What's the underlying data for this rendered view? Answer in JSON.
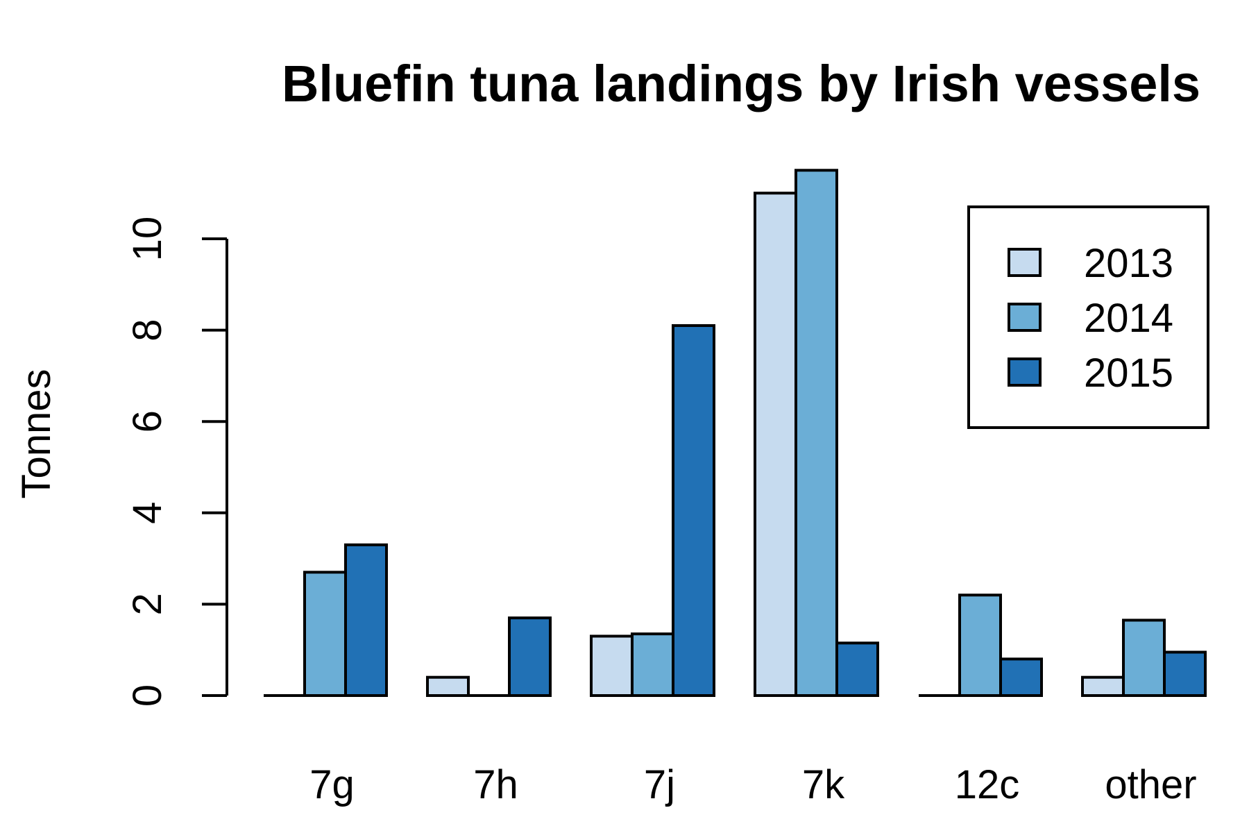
{
  "chart_data": {
    "type": "bar",
    "title": "Bluefin tuna landings by Irish vessels",
    "xlabel": "",
    "ylabel": "Tonnes",
    "categories": [
      "7g",
      "7h",
      "7j",
      "7k",
      "12c",
      "other"
    ],
    "series": [
      {
        "name": "2013",
        "color": "#c6dbef",
        "values": [
          0,
          0.4,
          1.3,
          11.0,
          0,
          0.4
        ]
      },
      {
        "name": "2014",
        "color": "#6baed6",
        "values": [
          2.7,
          0,
          1.35,
          11.5,
          2.2,
          1.65
        ]
      },
      {
        "name": "2015",
        "color": "#2171b5",
        "values": [
          3.3,
          1.7,
          8.1,
          1.15,
          0.8,
          0.95
        ]
      }
    ],
    "yticks": [
      0,
      2,
      4,
      6,
      8,
      10
    ],
    "ytick_labels": [
      "0",
      "2",
      "4",
      "6",
      "8",
      "10"
    ],
    "ylim": [
      0,
      11.5
    ],
    "grid": false,
    "legend_position": "top-right"
  }
}
